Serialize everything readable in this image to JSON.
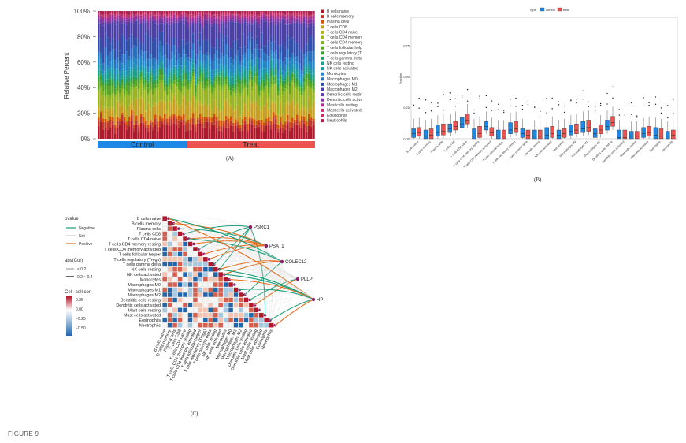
{
  "figure": {
    "caption": "FIGURE 9"
  },
  "panel_a": {
    "label": "(A)",
    "ylabel": "Relative Percent",
    "yticks": [
      "100%",
      "80%",
      "60%",
      "40%",
      "20%",
      "0%"
    ],
    "groups": [
      {
        "name": "Control",
        "color": "#1e88e5"
      },
      {
        "name": "Treat",
        "color": "#ef5350"
      }
    ],
    "legend": [
      {
        "name": "B cells naive",
        "color": "#b2182b"
      },
      {
        "name": "B cells memory",
        "color": "#c0392b"
      },
      {
        "name": "Plasma cells",
        "color": "#d35400"
      },
      {
        "name": "T cells CD8",
        "color": "#c8a020"
      },
      {
        "name": "T cells CD4 naive",
        "color": "#b5b020"
      },
      {
        "name": "T cells CD4 memory resting",
        "color": "#9ab520"
      },
      {
        "name": "T cells CD4 memory activated",
        "color": "#7cb518"
      },
      {
        "name": "T cells follicular helper",
        "color": "#5aa820"
      },
      {
        "name": "T cells regulatory (Tregs)",
        "color": "#38a030"
      },
      {
        "name": "T cells gamma delta",
        "color": "#20a060"
      },
      {
        "name": "NK cells resting",
        "color": "#1aa090"
      },
      {
        "name": "NK cells activated",
        "color": "#1a98b0"
      },
      {
        "name": "Monocytes",
        "color": "#2088c8"
      },
      {
        "name": "Macrophages M0",
        "color": "#2870c0"
      },
      {
        "name": "Macrophages M1",
        "color": "#3050b0"
      },
      {
        "name": "Macrophages M2",
        "color": "#4a40a8"
      },
      {
        "name": "Dendritic cells resting",
        "color": "#6a3aa8"
      },
      {
        "name": "Dendritic cells activated",
        "color": "#8a30a0"
      },
      {
        "name": "Mast cells resting",
        "color": "#a83090"
      },
      {
        "name": "Mast cells activated",
        "color": "#c03078"
      },
      {
        "name": "Eosinophils",
        "color": "#c83060"
      },
      {
        "name": "Neutrophils",
        "color": "#b02050"
      }
    ]
  },
  "panel_b": {
    "label": "(B)",
    "ylabel": "Fraction",
    "legend_title": "Type",
    "legend": [
      {
        "name": "control",
        "color": "#1e88e5"
      },
      {
        "name": "treat",
        "color": "#ef5350"
      }
    ],
    "yticks": [
      "0.75",
      "0.50",
      "0.25",
      "0.00"
    ],
    "categories": [
      "B cells naive",
      "B cells memory",
      "Plasma cells",
      "T cells CD8",
      "T cells CD4 naive",
      "T cells CD4 memory resting",
      "T cells CD4 memory activated",
      "T cells follicular helper",
      "T cells regulatory (Tregs)",
      "T cells gamma delta",
      "NK cells resting",
      "NK cells activated",
      "Monocytes",
      "Macrophages M0",
      "Macrophages M1",
      "Macrophages M2",
      "Dendritic cells resting",
      "Dendritic cells activated",
      "Mast cells resting",
      "Mast cells activated",
      "Eosinophils",
      "Neutrophils"
    ]
  },
  "panel_c": {
    "label": "(C)",
    "legend_pvalue": {
      "title": "pvalue",
      "items": [
        {
          "name": "Negative",
          "color": "#1a9e77"
        },
        {
          "name": "Not",
          "color": "#cccccc"
        },
        {
          "name": "Positive",
          "color": "#e66a1a"
        }
      ]
    },
    "legend_abs": {
      "title": "abs(Cor)",
      "items": [
        "< 0.2",
        "0.2 ~ 0.4"
      ]
    },
    "legend_cor": {
      "title": "Cell−cell cor",
      "ticks": [
        "0.25",
        "0.00",
        "−0.25",
        "−0.50"
      ]
    },
    "rows": [
      "B cells naive",
      "B cells memory",
      "Plasma cells",
      "T cells CD8",
      "T cells CD4 naive",
      "T cells CD4 memory resting",
      "T cells CD4 memory activated",
      "T cells follicular helper",
      "T cells regulatory (Tregs)",
      "T cells gamma delta",
      "NK cells resting",
      "NK cells activated",
      "Monocytes",
      "Macrophages M0",
      "Macrophages M1",
      "Macrophages M2",
      "Dendritic cells resting",
      "Dendritic cells activated",
      "Mast cells resting",
      "Mast cells activated",
      "Eosinophils",
      "Neutrophils"
    ],
    "genes": [
      "PSRC1",
      "PSAT1",
      "COLEC12",
      "PLLP",
      "HP"
    ]
  }
}
